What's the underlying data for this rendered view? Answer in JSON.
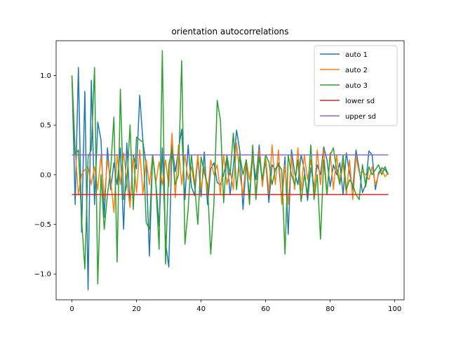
{
  "chart_data": {
    "type": "line",
    "title": "orientation autocorrelations",
    "xlabel": "",
    "ylabel": "",
    "xlim": [
      -4.9,
      102.9
    ],
    "ylim": [
      -1.26,
      1.35
    ],
    "xticks": [
      0,
      20,
      40,
      60,
      80,
      100
    ],
    "yticks": [
      -1.0,
      -0.5,
      0.0,
      0.5,
      1.0
    ],
    "xtick_labels": [
      "0",
      "20",
      "40",
      "60",
      "80",
      "100"
    ],
    "ytick_labels": [
      "−1.0",
      "−0.5",
      "0.0",
      "0.5",
      "1.0"
    ],
    "legend_position": "top-right",
    "grid": false,
    "series": [
      {
        "name": "auto 1",
        "color": "#1f77b4",
        "x": [
          0,
          1,
          2,
          3,
          4,
          5,
          6,
          7,
          8,
          9,
          10,
          11,
          12,
          13,
          14,
          15,
          16,
          17,
          18,
          19,
          20,
          21,
          22,
          23,
          24,
          25,
          26,
          27,
          28,
          29,
          30,
          31,
          32,
          33,
          34,
          35,
          36,
          37,
          38,
          39,
          40,
          41,
          42,
          43,
          44,
          45,
          46,
          47,
          48,
          49,
          50,
          51,
          52,
          53,
          54,
          55,
          56,
          57,
          58,
          59,
          60,
          61,
          62,
          63,
          64,
          65,
          66,
          67,
          68,
          69,
          70,
          71,
          72,
          73,
          74,
          75,
          76,
          77,
          78,
          79,
          80,
          81,
          82,
          83,
          84,
          85,
          86,
          87,
          88,
          89,
          90,
          91,
          92,
          93,
          94,
          95,
          96,
          97,
          98
        ],
        "values": [
          1.0,
          -0.3,
          1.08,
          -0.58,
          0.84,
          -1.16,
          0.95,
          -0.3,
          0.53,
          0.35,
          -0.43,
          0.27,
          -0.15,
          0.12,
          -0.1,
          0.27,
          -0.55,
          0.32,
          -0.3,
          0.2,
          0.06,
          0.8,
          0.33,
          0.1,
          -0.82,
          0.2,
          -0.08,
          -0.52,
          0.27,
          -0.68,
          -0.93,
          0.31,
          0.03,
          0.25,
          0.46,
          -0.25,
          0.3,
          -0.12,
          -0.21,
          0.18,
          -0.22,
          0.23,
          -0.3,
          0.06,
          0.12,
          -0.08,
          -0.1,
          0.0,
          0.17,
          -0.2,
          0.08,
          0.45,
          0.24,
          -0.35,
          0.12,
          -0.22,
          0.2,
          -0.05,
          0.3,
          -0.1,
          0.15,
          -0.28,
          0.1,
          0.05,
          0.12,
          -0.26,
          0.18,
          -0.6,
          0.25,
          0.02,
          -0.1,
          0.2,
          0.05,
          -0.26,
          0.07,
          -0.12,
          0.1,
          0.0,
          0.28,
          0.15,
          -0.12,
          0.1,
          0.0,
          0.12,
          -0.2,
          0.22,
          0.02,
          -0.15,
          0.25,
          0.05,
          -0.18,
          -0.1,
          0.24,
          0.2,
          -0.15,
          0.02,
          0.07,
          0.05,
          0.0
        ]
      },
      {
        "name": "auto 2",
        "color": "#ff7f0e",
        "x": [
          0,
          1,
          2,
          3,
          4,
          5,
          6,
          7,
          8,
          9,
          10,
          11,
          12,
          13,
          14,
          15,
          16,
          17,
          18,
          19,
          20,
          21,
          22,
          23,
          24,
          25,
          26,
          27,
          28,
          29,
          30,
          31,
          32,
          33,
          34,
          35,
          36,
          37,
          38,
          39,
          40,
          41,
          42,
          43,
          44,
          45,
          46,
          47,
          48,
          49,
          50,
          51,
          52,
          53,
          54,
          55,
          56,
          57,
          58,
          59,
          60,
          61,
          62,
          63,
          64,
          65,
          66,
          67,
          68,
          69,
          70,
          71,
          72,
          73,
          74,
          75,
          76,
          77,
          78,
          79,
          80,
          81,
          82,
          83,
          84,
          85,
          86,
          87,
          88,
          89,
          90,
          91,
          92,
          93,
          94,
          95,
          96,
          97,
          98
        ],
        "values": [
          1.0,
          0.25,
          -0.2,
          0.0,
          0.05,
          0.08,
          -0.1,
          0.08,
          -0.15,
          0.2,
          -0.25,
          0.15,
          -0.05,
          -0.38,
          0.2,
          -0.1,
          0.22,
          -0.05,
          -0.33,
          0.18,
          -0.18,
          0.25,
          -0.2,
          0.15,
          -0.1,
          0.2,
          -0.08,
          0.13,
          -0.1,
          0.15,
          -0.12,
          0.42,
          -0.23,
          0.3,
          -0.1,
          0.2,
          -0.05,
          0.08,
          -0.12,
          0.2,
          -0.15,
          0.08,
          -0.2,
          0.15,
          0.0,
          0.1,
          -0.2,
          0.2,
          -0.1,
          0.05,
          -0.15,
          0.32,
          0.0,
          -0.2,
          0.15,
          -0.05,
          0.2,
          -0.2,
          0.25,
          -0.12,
          0.18,
          -0.18,
          0.3,
          -0.1,
          0.25,
          -0.3,
          0.1,
          -0.3,
          0.18,
          -0.15,
          0.27,
          -0.16,
          0.2,
          -0.05,
          0.15,
          -0.2,
          0.25,
          -0.1,
          0.25,
          -0.2,
          0.22,
          -0.15,
          0.2,
          -0.08,
          0.12,
          -0.2,
          0.15,
          -0.25,
          0.18,
          0.02,
          0.03,
          0.0,
          -0.05,
          0.08,
          -0.1,
          0.0,
          0.05,
          -0.02,
          0.02
        ]
      },
      {
        "name": "auto 3",
        "color": "#2ca02c",
        "x": [
          0,
          1,
          2,
          3,
          4,
          5,
          6,
          7,
          8,
          9,
          10,
          11,
          12,
          13,
          14,
          15,
          16,
          17,
          18,
          19,
          20,
          21,
          22,
          23,
          24,
          25,
          26,
          27,
          28,
          29,
          30,
          31,
          32,
          33,
          34,
          35,
          36,
          37,
          38,
          39,
          40,
          41,
          42,
          43,
          44,
          45,
          46,
          47,
          48,
          49,
          50,
          51,
          52,
          53,
          54,
          55,
          56,
          57,
          58,
          59,
          60,
          61,
          62,
          63,
          64,
          65,
          66,
          67,
          68,
          69,
          70,
          71,
          72,
          73,
          74,
          75,
          76,
          77,
          78,
          79,
          80,
          81,
          82,
          83,
          84,
          85,
          86,
          87,
          88,
          89,
          90,
          91,
          92,
          93,
          94,
          95,
          96,
          97,
          98
        ],
        "values": [
          1.0,
          0.2,
          0.25,
          -0.45,
          -0.95,
          0.18,
          0.25,
          1.08,
          -1.1,
          0.0,
          -0.55,
          -0.2,
          0.06,
          0.58,
          -0.88,
          0.86,
          -0.25,
          -0.1,
          0.5,
          -0.35,
          0.38,
          0.35,
          0.33,
          -0.48,
          -0.55,
          0.2,
          -0.1,
          -0.75,
          1.25,
          -0.9,
          0.1,
          0.25,
          -0.1,
          0.0,
          1.15,
          -0.7,
          -0.35,
          0.2,
          -0.1,
          -0.5,
          0.18,
          0.02,
          -0.1,
          -0.8,
          -0.28,
          0.75,
          0.55,
          -0.28,
          0.2,
          0.0,
          0.42,
          -0.15,
          0.2,
          0.0,
          0.15,
          -0.3,
          0.3,
          -0.25,
          0.18,
          -0.05,
          0.2,
          0.13,
          -0.1,
          0.05,
          0.1,
          0.05,
          -0.8,
          0.2,
          0.0,
          -0.1,
          0.15,
          -0.27,
          0.0,
          -0.2,
          0.3,
          -0.25,
          0.0,
          -0.65,
          0.15,
          -0.2,
          0.2,
          0.27,
          0.05,
          -0.1,
          0.2,
          -0.15,
          -0.05,
          -0.1,
          -0.2,
          -0.25,
          0.1,
          -0.12,
          0.08,
          0.0,
          0.05,
          0.1,
          0.0,
          0.08,
          0.0
        ]
      },
      {
        "name": "lower sd",
        "color": "#d62728",
        "x": [
          0,
          98
        ],
        "values": [
          -0.2,
          -0.2
        ]
      },
      {
        "name": "upper sd",
        "color": "#9467bd",
        "x": [
          0,
          98
        ],
        "values": [
          0.2,
          0.2
        ]
      }
    ]
  }
}
